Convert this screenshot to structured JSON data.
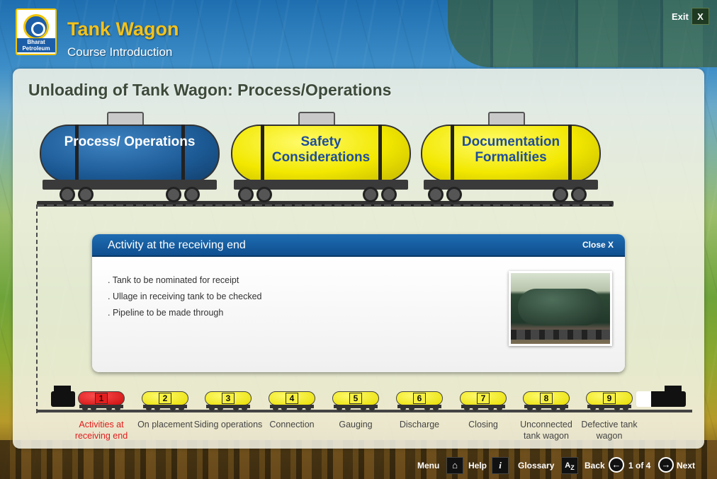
{
  "header": {
    "logo_text": "Bharat Petroleum",
    "app_title": "Tank Wagon",
    "app_subtitle": "Course Introduction",
    "exit_label": "Exit",
    "exit_button": "X"
  },
  "main": {
    "title": "Unloading of Tank Wagon: Process/Operations",
    "wagons": [
      {
        "label": "Process/ Operations",
        "color": "#1c5a95"
      },
      {
        "label": "Safety Considerations",
        "color": "#f2e800"
      },
      {
        "label": "Documentation Formalities",
        "color": "#f2e800"
      }
    ]
  },
  "popup": {
    "title": "Activity at the receiving end",
    "close_label": "Close X",
    "bullets": [
      ". Tank to be nominated for receipt",
      ". Ullage in receiving tank to be checked",
      ". Pipeline to be made through"
    ]
  },
  "steps": [
    {
      "num": "1",
      "label": "Activities at receiving end",
      "active": true
    },
    {
      "num": "2",
      "label": "On placement"
    },
    {
      "num": "3",
      "label": "Siding operations"
    },
    {
      "num": "4",
      "label": "Connection"
    },
    {
      "num": "5",
      "label": "Gauging"
    },
    {
      "num": "6",
      "label": "Discharge"
    },
    {
      "num": "7",
      "label": "Closing"
    },
    {
      "num": "8",
      "label": "Unconnected tank wagon"
    },
    {
      "num": "9",
      "label": "Defective tank wagon"
    }
  ],
  "footer": {
    "menu": "Menu",
    "help": "Help",
    "glossary": "Glossary",
    "back": "Back",
    "page": "1 of 4",
    "next": "Next"
  },
  "colors": {
    "accent_blue": "#1d5ea8",
    "title_yellow": "#f4c21b",
    "active_red": "#e21b1b"
  }
}
